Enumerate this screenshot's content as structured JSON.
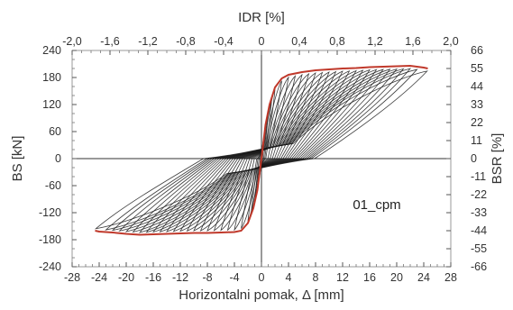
{
  "chart_data": {
    "type": "line",
    "title": "",
    "xlabel": "Horizontalni pomak, Δ [mm]",
    "ylabel": "BS [kN]",
    "x2label": "IDR [%]",
    "y2label": "BSR [%]",
    "xlim": [
      -28,
      28
    ],
    "ylim": [
      -240,
      240
    ],
    "x2lim": [
      -2.0,
      2.0
    ],
    "y2lim": [
      -66,
      66
    ],
    "xticks": [
      "-28",
      "-24",
      "-20",
      "-16",
      "-12",
      "-8",
      "-4",
      "0",
      "4",
      "8",
      "12",
      "16",
      "20",
      "24",
      "28"
    ],
    "yticks": [
      "-240",
      "-180",
      "-120",
      "-60",
      "0",
      "60",
      "120",
      "180",
      "240"
    ],
    "x2ticks": [
      "-2,0",
      "-1,6",
      "-1,2",
      "-0,8",
      "-0,4",
      "0",
      "0,4",
      "0,8",
      "1,2",
      "1,6",
      "2,0"
    ],
    "y2ticks": [
      "-66",
      "-55",
      "-44",
      "-33",
      "-22",
      "-11",
      "0",
      "11",
      "22",
      "33",
      "44",
      "55",
      "66"
    ],
    "annotation": "01_cpm",
    "grid": false,
    "series": [
      {
        "role": "hysteresis",
        "color": "#1a1a1a",
        "cycle_amplitudes_mm": [
          0.5,
          1,
          1.5,
          2,
          3,
          4,
          5,
          6,
          7,
          8,
          9,
          10,
          11,
          12,
          13,
          14,
          15,
          16,
          17,
          18,
          19,
          20,
          21,
          22,
          23,
          24.5
        ]
      },
      {
        "role": "envelope",
        "color": "#c0392b",
        "positive": {
          "x": [
            0,
            0.6,
            1.2,
            2,
            3,
            4,
            6,
            8,
            10,
            12,
            14,
            16,
            18,
            20,
            22,
            24,
            24.6
          ],
          "y": [
            0,
            75,
            120,
            158,
            178,
            186,
            192,
            196,
            198,
            200,
            201,
            203,
            204,
            205,
            206,
            202,
            200
          ]
        },
        "negative": {
          "x": [
            0,
            -0.6,
            -1.2,
            -2,
            -3,
            -4,
            -6,
            -8,
            -10,
            -12,
            -14,
            -16,
            -18,
            -20,
            -22,
            -24,
            -24.6
          ],
          "y": [
            0,
            -70,
            -110,
            -143,
            -160,
            -163,
            -164,
            -165,
            -165,
            -166,
            -167,
            -168,
            -169,
            -167,
            -164,
            -162,
            -160
          ]
        }
      }
    ]
  }
}
